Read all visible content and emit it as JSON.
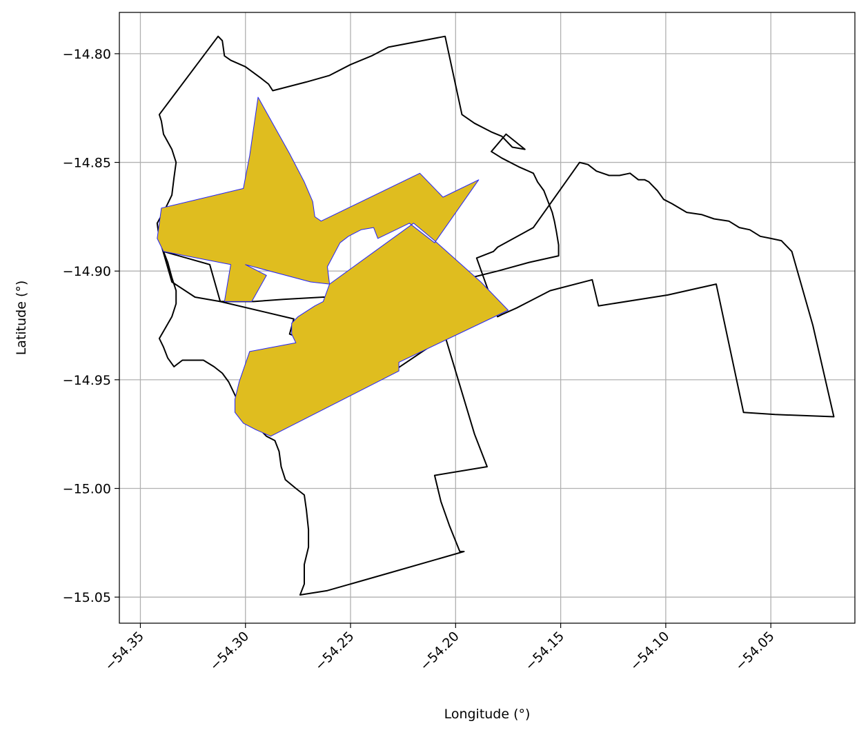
{
  "chart_data": {
    "type": "map",
    "xlabel": "Longitude (°)",
    "ylabel": "Latitude (°)",
    "xlim": [
      -54.36,
      -54.01
    ],
    "ylim": [
      -15.062,
      -14.781
    ],
    "xticks": [
      -54.35,
      -54.3,
      -54.25,
      -54.2,
      -54.15,
      -54.1,
      -54.05
    ],
    "xtick_labels": [
      "−54.35",
      "−54.30",
      "−54.25",
      "−54.20",
      "−54.15",
      "−54.10",
      "−54.05"
    ],
    "yticks": [
      -14.8,
      -14.85,
      -14.9,
      -14.95,
      -15.0,
      -15.05
    ],
    "ytick_labels": [
      "−14.80",
      "−14.85",
      "−14.90",
      "−14.95",
      "−15.00",
      "−15.05"
    ],
    "grid": true,
    "colors": {
      "highlight_fill": "#dfbd1f",
      "highlight_edge": "#2020ff",
      "outline": "#000000",
      "grid": "#b0b0b0"
    },
    "regions": [
      {
        "style": "outline",
        "coords": [
          [
            -54.341,
            -14.828
          ],
          [
            -54.313,
            -14.792
          ],
          [
            -54.311,
            -14.794
          ],
          [
            -54.31,
            -14.801
          ],
          [
            -54.307,
            -14.803
          ],
          [
            -54.3,
            -14.806
          ],
          [
            -54.293,
            -14.811
          ],
          [
            -54.289,
            -14.814
          ],
          [
            -54.287,
            -14.817
          ],
          [
            -54.283,
            -14.816
          ],
          [
            -54.271,
            -14.813
          ],
          [
            -54.26,
            -14.81
          ],
          [
            -54.25,
            -14.805
          ],
          [
            -54.24,
            -14.801
          ],
          [
            -54.232,
            -14.797
          ],
          [
            -54.205,
            -14.792
          ],
          [
            -54.197,
            -14.828
          ],
          [
            -54.191,
            -14.832
          ],
          [
            -54.183,
            -14.836
          ],
          [
            -54.178,
            -14.838
          ],
          [
            -54.173,
            -14.843
          ],
          [
            -54.167,
            -14.844
          ],
          [
            -54.176,
            -14.837
          ],
          [
            -54.183,
            -14.845
          ],
          [
            -54.178,
            -14.848
          ],
          [
            -54.17,
            -14.852
          ],
          [
            -54.163,
            -14.855
          ],
          [
            -54.161,
            -14.859
          ],
          [
            -54.158,
            -14.863
          ],
          [
            -54.156,
            -14.868
          ],
          [
            -54.154,
            -14.873
          ],
          [
            -54.153,
            -14.877
          ],
          [
            -54.152,
            -14.882
          ],
          [
            -54.151,
            -14.888
          ],
          [
            -54.151,
            -14.893
          ],
          [
            -54.165,
            -14.896
          ],
          [
            -54.18,
            -14.9
          ],
          [
            -54.205,
            -14.906
          ],
          [
            -54.225,
            -14.91
          ],
          [
            -54.243,
            -14.912
          ],
          [
            -54.263,
            -14.912
          ],
          [
            -54.282,
            -14.913
          ],
          [
            -54.296,
            -14.914
          ],
          [
            -54.312,
            -14.914
          ],
          [
            -54.324,
            -14.912
          ],
          [
            -54.335,
            -14.905
          ],
          [
            -54.338,
            -14.895
          ],
          [
            -54.341,
            -14.885
          ],
          [
            -54.342,
            -14.878
          ],
          [
            -54.338,
            -14.871
          ],
          [
            -54.335,
            -14.865
          ],
          [
            -54.334,
            -14.857
          ],
          [
            -54.333,
            -14.85
          ],
          [
            -54.335,
            -14.844
          ],
          [
            -54.339,
            -14.837
          ],
          [
            -54.34,
            -14.831
          ],
          [
            -54.341,
            -14.828
          ]
        ]
      },
      {
        "style": "outline",
        "coords": [
          [
            -54.19,
            -14.894
          ],
          [
            -54.182,
            -14.891
          ],
          [
            -54.18,
            -14.889
          ],
          [
            -54.163,
            -14.88
          ],
          [
            -54.141,
            -14.85
          ],
          [
            -54.137,
            -14.851
          ],
          [
            -54.133,
            -14.854
          ],
          [
            -54.127,
            -14.856
          ],
          [
            -54.122,
            -14.856
          ],
          [
            -54.117,
            -14.855
          ],
          [
            -54.113,
            -14.858
          ],
          [
            -54.11,
            -14.858
          ],
          [
            -54.108,
            -14.859
          ],
          [
            -54.104,
            -14.863
          ],
          [
            -54.101,
            -14.867
          ],
          [
            -54.097,
            -14.869
          ],
          [
            -54.09,
            -14.873
          ],
          [
            -54.083,
            -14.874
          ],
          [
            -54.077,
            -14.876
          ],
          [
            -54.07,
            -14.877
          ],
          [
            -54.065,
            -14.88
          ],
          [
            -54.06,
            -14.881
          ],
          [
            -54.055,
            -14.884
          ],
          [
            -54.05,
            -14.885
          ],
          [
            -54.045,
            -14.886
          ],
          [
            -54.044,
            -14.887
          ],
          [
            -54.04,
            -14.891
          ],
          [
            -54.03,
            -14.925
          ],
          [
            -54.02,
            -14.967
          ],
          [
            -54.048,
            -14.966
          ],
          [
            -54.063,
            -14.965
          ],
          [
            -54.076,
            -14.906
          ],
          [
            -54.099,
            -14.911
          ],
          [
            -54.132,
            -14.916
          ],
          [
            -54.135,
            -14.904
          ],
          [
            -54.155,
            -14.909
          ],
          [
            -54.165,
            -14.914
          ],
          [
            -54.171,
            -14.917
          ],
          [
            -54.178,
            -14.92
          ],
          [
            -54.18,
            -14.921
          ],
          [
            -54.19,
            -14.894
          ]
        ]
      },
      {
        "style": "outline",
        "coords": [
          [
            -54.205,
            -14.93
          ],
          [
            -54.191,
            -14.975
          ],
          [
            -54.185,
            -14.99
          ],
          [
            -54.21,
            -14.994
          ],
          [
            -54.207,
            -15.006
          ],
          [
            -54.203,
            -15.017
          ],
          [
            -54.198,
            -15.029
          ],
          [
            -54.196,
            -15.029
          ],
          [
            -54.232,
            -15.039
          ],
          [
            -54.261,
            -15.047
          ],
          [
            -54.274,
            -15.049
          ],
          [
            -54.272,
            -15.044
          ],
          [
            -54.272,
            -15.035
          ],
          [
            -54.27,
            -15.027
          ],
          [
            -54.27,
            -15.019
          ],
          [
            -54.271,
            -15.01
          ],
          [
            -54.272,
            -15.003
          ],
          [
            -54.276,
            -15.0
          ],
          [
            -54.281,
            -14.996
          ],
          [
            -54.283,
            -14.99
          ],
          [
            -54.284,
            -14.983
          ],
          [
            -54.286,
            -14.978
          ],
          [
            -54.29,
            -14.976
          ],
          [
            -54.294,
            -14.972
          ],
          [
            -54.297,
            -14.969
          ],
          [
            -54.3,
            -14.965
          ],
          [
            -54.303,
            -14.961
          ],
          [
            -54.305,
            -14.957
          ],
          [
            -54.308,
            -14.951
          ],
          [
            -54.311,
            -14.947
          ],
          [
            -54.315,
            -14.944
          ],
          [
            -54.32,
            -14.941
          ],
          [
            -54.325,
            -14.941
          ],
          [
            -54.33,
            -14.941
          ],
          [
            -54.334,
            -14.944
          ],
          [
            -54.337,
            -14.94
          ],
          [
            -54.339,
            -14.935
          ],
          [
            -54.341,
            -14.931
          ],
          [
            -54.338,
            -14.926
          ],
          [
            -54.335,
            -14.921
          ],
          [
            -54.333,
            -14.915
          ],
          [
            -54.333,
            -14.909
          ],
          [
            -54.335,
            -14.903
          ],
          [
            -54.337,
            -14.896
          ],
          [
            -54.339,
            -14.891
          ],
          [
            -54.317,
            -14.897
          ],
          [
            -54.312,
            -14.914
          ],
          [
            -54.277,
            -14.922
          ],
          [
            -54.279,
            -14.929
          ],
          [
            -54.265,
            -14.934
          ],
          [
            -54.243,
            -14.944
          ],
          [
            -54.236,
            -14.947
          ],
          [
            -54.228,
            -14.945
          ],
          [
            -54.205,
            -14.93
          ]
        ]
      },
      {
        "style": "highlight",
        "coords": [
          [
            -54.34,
            -14.871
          ],
          [
            -54.301,
            -14.862
          ],
          [
            -54.3,
            -14.857
          ],
          [
            -54.298,
            -14.847
          ],
          [
            -54.294,
            -14.82
          ],
          [
            -54.279,
            -14.846
          ],
          [
            -54.272,
            -14.859
          ],
          [
            -54.268,
            -14.868
          ],
          [
            -54.267,
            -14.875
          ],
          [
            -54.264,
            -14.877
          ],
          [
            -54.217,
            -14.855
          ],
          [
            -54.206,
            -14.866
          ],
          [
            -54.189,
            -14.858
          ],
          [
            -54.21,
            -14.887
          ],
          [
            -54.222,
            -14.878
          ],
          [
            -54.237,
            -14.885
          ],
          [
            -54.239,
            -14.88
          ],
          [
            -54.245,
            -14.881
          ],
          [
            -54.251,
            -14.884
          ],
          [
            -54.255,
            -14.887
          ],
          [
            -54.261,
            -14.898
          ],
          [
            -54.26,
            -14.906
          ],
          [
            -54.263,
            -14.914
          ],
          [
            -54.267,
            -14.916
          ],
          [
            -54.275,
            -14.921
          ],
          [
            -54.278,
            -14.924
          ],
          [
            -54.278,
            -14.929
          ],
          [
            -54.276,
            -14.933
          ],
          [
            -54.298,
            -14.937
          ],
          [
            -54.303,
            -14.951
          ],
          [
            -54.305,
            -14.959
          ],
          [
            -54.305,
            -14.965
          ],
          [
            -54.301,
            -14.97
          ],
          [
            -54.295,
            -14.973
          ],
          [
            -54.288,
            -14.976
          ],
          [
            -54.227,
            -14.946
          ],
          [
            -54.227,
            -14.942
          ],
          [
            -54.175,
            -14.918
          ],
          [
            -54.188,
            -14.905
          ],
          [
            -54.21,
            -14.886
          ],
          [
            -54.22,
            -14.878
          ],
          [
            -54.26,
            -14.906
          ],
          [
            -54.269,
            -14.905
          ],
          [
            -54.3,
            -14.897
          ],
          [
            -54.29,
            -14.902
          ],
          [
            -54.297,
            -14.914
          ],
          [
            -54.31,
            -14.914
          ],
          [
            -54.307,
            -14.897
          ],
          [
            -54.339,
            -14.891
          ],
          [
            -54.342,
            -14.885
          ],
          [
            -54.34,
            -14.871
          ]
        ]
      }
    ]
  }
}
